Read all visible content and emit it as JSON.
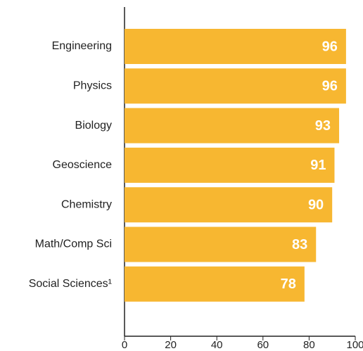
{
  "chart_data": {
    "type": "bar",
    "orientation": "horizontal",
    "categories": [
      "Engineering",
      "Physics",
      "Biology",
      "Geoscience",
      "Chemistry",
      "Math/Comp Sci",
      "Social Sciences¹"
    ],
    "values": [
      96,
      96,
      93,
      91,
      90,
      83,
      78
    ],
    "color": "#f7b731",
    "xlim": [
      0,
      100
    ],
    "xticks": [
      0,
      20,
      40,
      60,
      80,
      100
    ],
    "grid": false
  }
}
